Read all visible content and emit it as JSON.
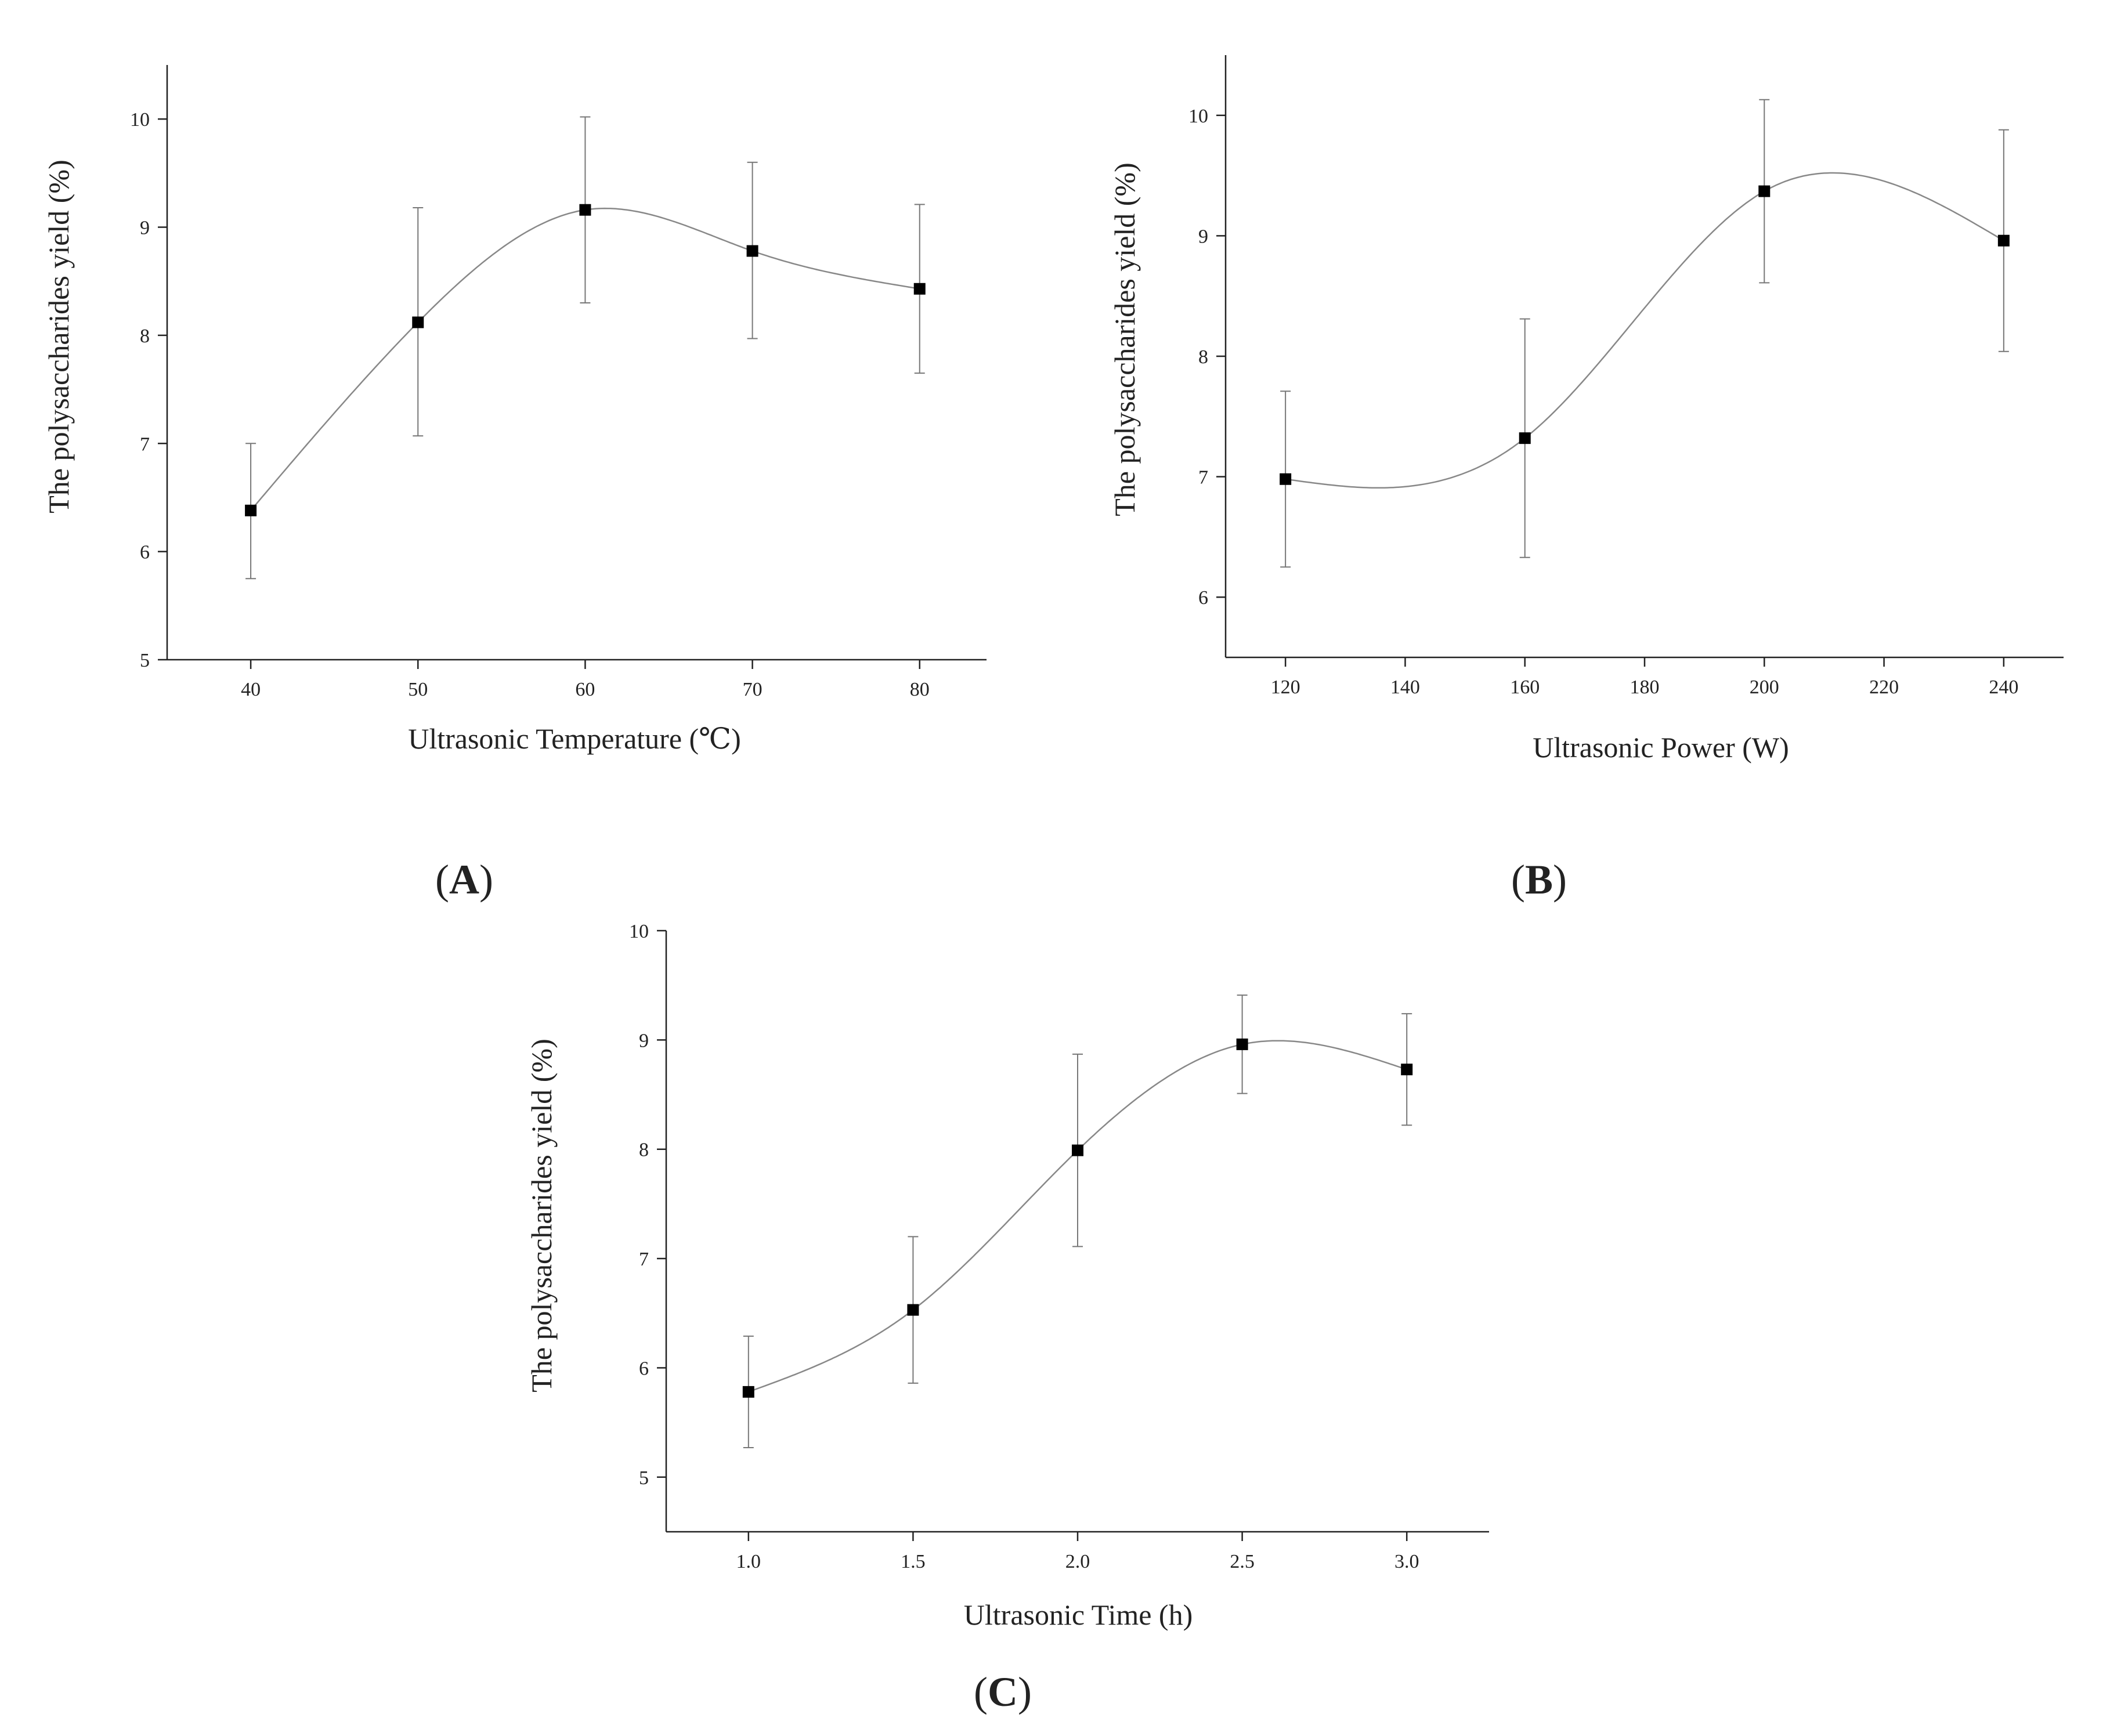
{
  "figure": {
    "panels": [
      "A",
      "B",
      "C"
    ]
  },
  "colors": {
    "axis": "#222222",
    "curve": "#888888",
    "errorbar": "#777777",
    "marker": "#000000",
    "background": "#ffffff"
  },
  "chart_data": [
    {
      "id": "A",
      "type": "line",
      "panel_label": "A",
      "title": "",
      "xlabel": "Ultrasonic Temperature (℃)",
      "ylabel": "The polysaccharides yield (%)",
      "xlim": [
        35,
        84
      ],
      "ylim": [
        5,
        10.5
      ],
      "xticks": [
        40,
        50,
        60,
        70,
        80
      ],
      "xtick_labels": [
        "40",
        "50",
        "60",
        "70",
        "80"
      ],
      "yticks": [
        5,
        6,
        7,
        8,
        9,
        10
      ],
      "ytick_labels": [
        "5",
        "6",
        "7",
        "8",
        "9",
        "10"
      ],
      "grid": false,
      "legend": "none",
      "marker": "square",
      "smooth": true,
      "series": [
        {
          "name": "yield",
          "x": [
            40,
            50,
            60,
            70,
            80
          ],
          "y": [
            6.38,
            8.12,
            9.16,
            8.78,
            8.43
          ],
          "err_upper": [
            7.0,
            9.18,
            10.02,
            9.6,
            9.21
          ],
          "err_lower": [
            5.75,
            7.07,
            8.3,
            7.97,
            7.65
          ]
        }
      ]
    },
    {
      "id": "B",
      "type": "line",
      "panel_label": "B",
      "title": "",
      "xlabel": "Ultrasonic Power (W)",
      "ylabel": "The polysaccharides yield (%)",
      "xlim": [
        110,
        250
      ],
      "ylim": [
        5.5,
        10.5
      ],
      "xticks": [
        120,
        140,
        160,
        180,
        200,
        220,
        240
      ],
      "xtick_labels": [
        "120",
        "140",
        "160",
        "180",
        "200",
        "220",
        "240"
      ],
      "yticks": [
        6,
        7,
        8,
        9,
        10
      ],
      "ytick_labels": [
        "6",
        "7",
        "8",
        "9",
        "10"
      ],
      "grid": false,
      "legend": "none",
      "marker": "square",
      "smooth": true,
      "series": [
        {
          "name": "yield",
          "x": [
            120,
            160,
            200,
            240
          ],
          "y": [
            6.98,
            7.32,
            9.37,
            8.96
          ],
          "err_upper": [
            7.71,
            8.31,
            10.13,
            9.88
          ],
          "err_lower": [
            6.25,
            6.33,
            8.61,
            8.04
          ]
        }
      ]
    },
    {
      "id": "C",
      "type": "line",
      "panel_label": "C",
      "title": "",
      "xlabel": "Ultrasonic Time (h)",
      "ylabel": "The polysaccharides yield (%)",
      "xlim": [
        0.75,
        3.25
      ],
      "ylim": [
        4.5,
        10
      ],
      "xticks": [
        1.0,
        1.5,
        2.0,
        2.5,
        3.0
      ],
      "xtick_labels": [
        "1.0",
        "1.5",
        "2.0",
        "2.5",
        "3.0"
      ],
      "yticks": [
        5,
        6,
        7,
        8,
        9,
        10
      ],
      "ytick_labels": [
        "5",
        "6",
        "7",
        "8",
        "9",
        "10"
      ],
      "grid": false,
      "legend": "none",
      "marker": "square",
      "smooth": true,
      "series": [
        {
          "name": "yield",
          "x": [
            1.0,
            1.5,
            2.0,
            2.5,
            3.0
          ],
          "y": [
            5.78,
            6.53,
            7.99,
            8.96,
            8.73
          ],
          "err_upper": [
            6.29,
            7.2,
            8.87,
            9.41,
            9.24
          ],
          "err_lower": [
            5.27,
            5.86,
            7.11,
            8.51,
            8.22
          ]
        }
      ]
    }
  ]
}
